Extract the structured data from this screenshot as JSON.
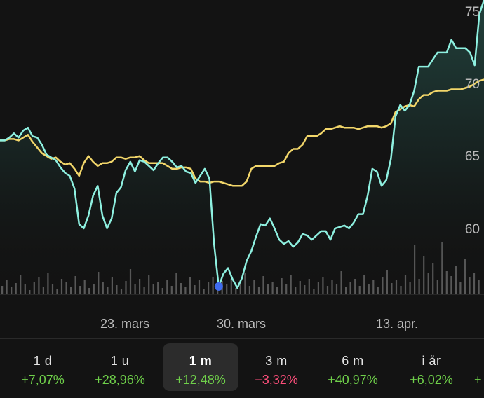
{
  "colors": {
    "background": "#131313",
    "price_line": "#8ef0e0",
    "benchmark_line": "#f2d66a",
    "volume_bars": "#5a5a5a",
    "marker": "#3f6cf0",
    "positive": "#6fd04a",
    "negative": "#ff4f7b"
  },
  "chart_data": {
    "type": "line",
    "ylim": [
      55.3,
      76
    ],
    "y_ticks": [
      "75",
      "70",
      "65",
      "60"
    ],
    "x_ticks": [
      "23. mars",
      "30. mars",
      "13. apr."
    ],
    "grid": false,
    "legend": "none",
    "series": [
      {
        "values": [
          66.1,
          66.1,
          66.3,
          66.6,
          66.3,
          66.8,
          67.0,
          66.4,
          66.3,
          65.8,
          65.1,
          64.9,
          64.7,
          64.2,
          63.8,
          63.6,
          62.7,
          60.2,
          59.9,
          60.8,
          62.2,
          62.9,
          60.8,
          59.9,
          60.6,
          62.4,
          62.8,
          64.0,
          64.6,
          63.9,
          64.7,
          64.6,
          64.3,
          64.0,
          64.5,
          64.9,
          64.9,
          64.6,
          64.2,
          64.3,
          63.9,
          63.8,
          63.1,
          63.6,
          64.1,
          63.4,
          58.8,
          55.8,
          56.7,
          57.1,
          56.3,
          55.7,
          56.4,
          57.6,
          58.3,
          59.3,
          60.2,
          60.1,
          60.6,
          59.9,
          59.1,
          58.8,
          59.0,
          58.6,
          58.9,
          59.5,
          59.4,
          59.1,
          59.4,
          59.7,
          59.7,
          59.1,
          59.9,
          60.0,
          60.1,
          59.9,
          60.3,
          60.9,
          60.9,
          62.2,
          64.1,
          63.9,
          62.9,
          63.3,
          64.8,
          67.8,
          68.6,
          68.2,
          68.6,
          69.6,
          71.3,
          71.3,
          71.3,
          71.8,
          72.3,
          72.3,
          72.3,
          73.2,
          72.6,
          72.6,
          72.6,
          72.3,
          71.4,
          75.0,
          76.0
        ]
      },
      {
        "values": [
          66.1,
          66.1,
          66.2,
          66.2,
          66.1,
          66.3,
          66.5,
          66.0,
          65.6,
          65.2,
          65.0,
          64.8,
          64.9,
          64.6,
          64.4,
          64.5,
          64.1,
          63.6,
          64.5,
          65.0,
          64.6,
          64.3,
          64.5,
          64.5,
          64.6,
          64.9,
          64.9,
          64.8,
          64.9,
          64.9,
          65.0,
          64.7,
          64.5,
          64.5,
          64.5,
          64.5,
          64.3,
          64.1,
          64.1,
          64.2,
          64.2,
          64.1,
          63.4,
          63.2,
          63.2,
          63.1,
          63.2,
          63.2,
          63.1,
          63.0,
          62.9,
          62.9,
          62.9,
          63.2,
          64.1,
          64.3,
          64.3,
          64.3,
          64.3,
          64.3,
          64.5,
          64.6,
          65.2,
          65.5,
          65.5,
          65.8,
          66.4,
          66.4,
          66.4,
          66.6,
          66.9,
          66.9,
          67.0,
          67.1,
          67.0,
          67.0,
          67.0,
          66.9,
          67.0,
          67.1,
          67.1,
          67.1,
          67.0,
          67.1,
          67.3,
          68.1,
          68.3,
          68.5,
          68.6,
          68.5,
          69.0,
          69.3,
          69.3,
          69.5,
          69.6,
          69.6,
          69.6,
          69.7,
          69.7,
          69.7,
          69.8,
          69.9,
          70.1,
          70.3,
          70.4
        ]
      }
    ],
    "volume": [
      0.12,
      0.2,
      0.1,
      0.16,
      0.28,
      0.14,
      0.06,
      0.18,
      0.24,
      0.1,
      0.3,
      0.15,
      0.08,
      0.22,
      0.17,
      0.1,
      0.26,
      0.12,
      0.2,
      0.09,
      0.14,
      0.32,
      0.18,
      0.11,
      0.24,
      0.13,
      0.08,
      0.19,
      0.36,
      0.15,
      0.22,
      0.1,
      0.27,
      0.14,
      0.18,
      0.09,
      0.21,
      0.12,
      0.3,
      0.16,
      0.1,
      0.25,
      0.13,
      0.2,
      0.08,
      0.17,
      0.24,
      0.11,
      0.19,
      0.14,
      0.22,
      0.09,
      0.16,
      0.3,
      0.12,
      0.2,
      0.1,
      0.26,
      0.15,
      0.18,
      0.11,
      0.23,
      0.14,
      0.28,
      0.1,
      0.19,
      0.13,
      0.22,
      0.08,
      0.17,
      0.25,
      0.12,
      0.2,
      0.14,
      0.33,
      0.1,
      0.18,
      0.22,
      0.12,
      0.27,
      0.15,
      0.2,
      0.1,
      0.24,
      0.35,
      0.16,
      0.2,
      0.12,
      0.28,
      0.18,
      0.7,
      0.22,
      0.55,
      0.3,
      0.45,
      0.2,
      0.75,
      0.33,
      0.26,
      0.4,
      0.18,
      0.5,
      0.24,
      0.3,
      0.2
    ],
    "selected_index": 47
  },
  "tabs": [
    {
      "label": "1 d",
      "change": "+7,07%",
      "trend": "pos"
    },
    {
      "label": "1 u",
      "change": "+28,96%",
      "trend": "pos"
    },
    {
      "label": "1 m",
      "change": "+12,48%",
      "trend": "pos",
      "active": true
    },
    {
      "label": "3 m",
      "change": "−3,32%",
      "trend": "neg"
    },
    {
      "label": "6 m",
      "change": "+40,97%",
      "trend": "pos"
    },
    {
      "label": "i år",
      "change": "+6,02%",
      "trend": "pos"
    },
    {
      "label": "",
      "change": "+",
      "trend": "pos"
    }
  ]
}
